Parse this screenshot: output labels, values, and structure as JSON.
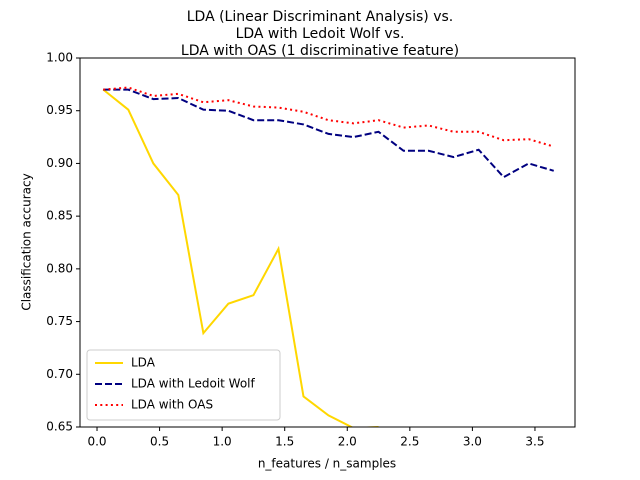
{
  "chart_data": {
    "type": "line",
    "title": [
      "LDA (Linear Discriminant Analysis) vs.",
      "LDA with Ledoit Wolf vs.",
      "LDA with OAS (1 discriminative feature)"
    ],
    "x_label": "n_features / n_samples",
    "y_label": "Classification accuracy",
    "x": [
      0.05,
      0.25,
      0.45,
      0.65,
      0.85,
      1.05,
      1.25,
      1.45,
      1.65,
      1.85,
      2.05,
      2.25,
      2.45,
      2.65,
      2.85,
      3.05,
      3.25,
      3.45,
      3.65
    ],
    "series": [
      {
        "name": "LDA",
        "color": "#ffd700",
        "dash": "solid",
        "values": [
          0.97,
          0.951,
          0.9,
          0.87,
          0.739,
          0.767,
          0.775,
          0.819,
          0.679,
          0.661,
          0.649,
          0.65,
          null,
          null,
          null,
          null,
          null,
          null,
          null
        ]
      },
      {
        "name": "LDA with Ledoit Wolf",
        "color": "#000080",
        "dash": "dashed",
        "values": [
          0.97,
          0.97,
          0.961,
          0.962,
          0.951,
          0.95,
          0.941,
          0.941,
          0.937,
          0.928,
          0.925,
          0.93,
          0.912,
          0.912,
          0.906,
          0.913,
          0.887,
          0.9,
          0.893
        ]
      },
      {
        "name": "LDA with OAS",
        "color": "#ff0000",
        "dash": "dotted",
        "values": [
          0.97,
          0.972,
          0.964,
          0.966,
          0.958,
          0.96,
          0.954,
          0.953,
          0.949,
          0.941,
          0.938,
          0.941,
          0.934,
          0.936,
          0.93,
          0.93,
          0.922,
          0.923,
          0.916
        ]
      }
    ],
    "xlim": [
      -0.136,
      3.82
    ],
    "ylim": [
      0.65,
      1.0
    ],
    "xticks": [
      {
        "value": 0,
        "label": "0.0"
      },
      0.5,
      {
        "value": 1,
        "label": "1.0"
      },
      1.5,
      {
        "value": 2,
        "label": "2.0"
      },
      2.5,
      {
        "value": 3,
        "label": "3.0"
      },
      3.5
    ],
    "yticks": [
      0.65,
      {
        "value": 0.7,
        "label": "0.70"
      },
      0.75,
      {
        "value": 0.8,
        "label": "0.80"
      },
      0.85,
      {
        "value": 0.9,
        "label": "0.90"
      },
      0.95,
      {
        "value": 1.0,
        "label": "1.00"
      }
    ],
    "legend": "lower left"
  }
}
